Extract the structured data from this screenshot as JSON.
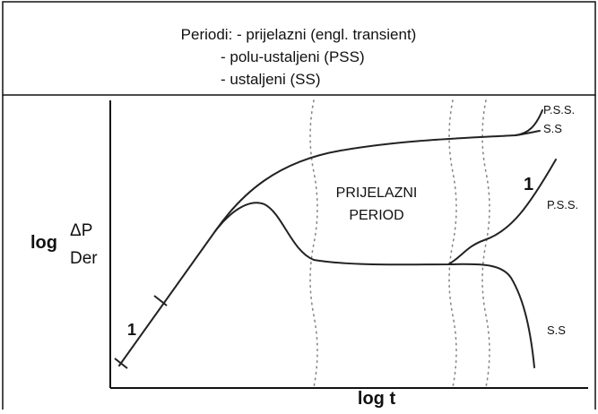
{
  "header": {
    "lines": [
      "Periodi: - prijelazni (engl. transient)",
      "- polu-ustaljeni (PSS)",
      "- ustaljeni (SS)"
    ]
  },
  "diagram": {
    "y_axis_label": {
      "log": "log",
      "numerator": "ΔP",
      "denominator": "Der"
    },
    "x_axis_label": "log t",
    "region_label": [
      "PRIJELAZNI",
      "PERIOD"
    ],
    "slope_labels": [
      "1",
      "1"
    ],
    "curve_labels": [
      "P.S.S.",
      "S.S",
      "P.S.S.",
      "S.S"
    ]
  }
}
